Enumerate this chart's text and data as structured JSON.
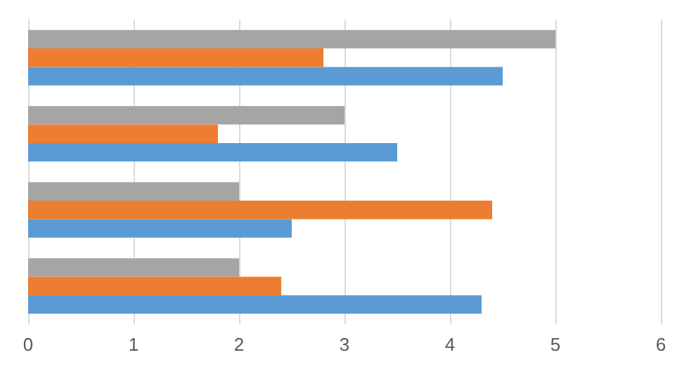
{
  "chart_data": {
    "type": "bar",
    "orientation": "horizontal",
    "categories": [
      null,
      null,
      null,
      null
    ],
    "series": [
      {
        "color": "#a5a5a5",
        "values": [
          5,
          3,
          2,
          2
        ]
      },
      {
        "color": "#ed7d31",
        "values": [
          2.8,
          1.8,
          4.4,
          2.4
        ]
      },
      {
        "color": "#5b9bd5",
        "values": [
          4.5,
          3.5,
          2.5,
          4.3
        ]
      }
    ],
    "xlim": [
      0,
      6
    ],
    "xticks": [
      0,
      1,
      2,
      3,
      4,
      5,
      6
    ],
    "grid": "x",
    "tick_labels": "x"
  }
}
